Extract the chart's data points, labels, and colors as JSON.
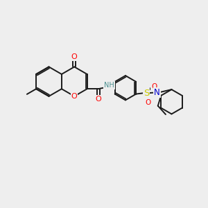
{
  "bg_color": "#eeeeee",
  "bond_color": "#1a1a1a",
  "bond_width": 1.4,
  "atom_colors": {
    "O": "#ff0000",
    "N": "#0000cd",
    "S": "#cccc00",
    "H": "#4a8f8f",
    "C": "#1a1a1a"
  },
  "font_size": 7.5,
  "fig_size": [
    3.0,
    3.0
  ],
  "dpi": 100
}
